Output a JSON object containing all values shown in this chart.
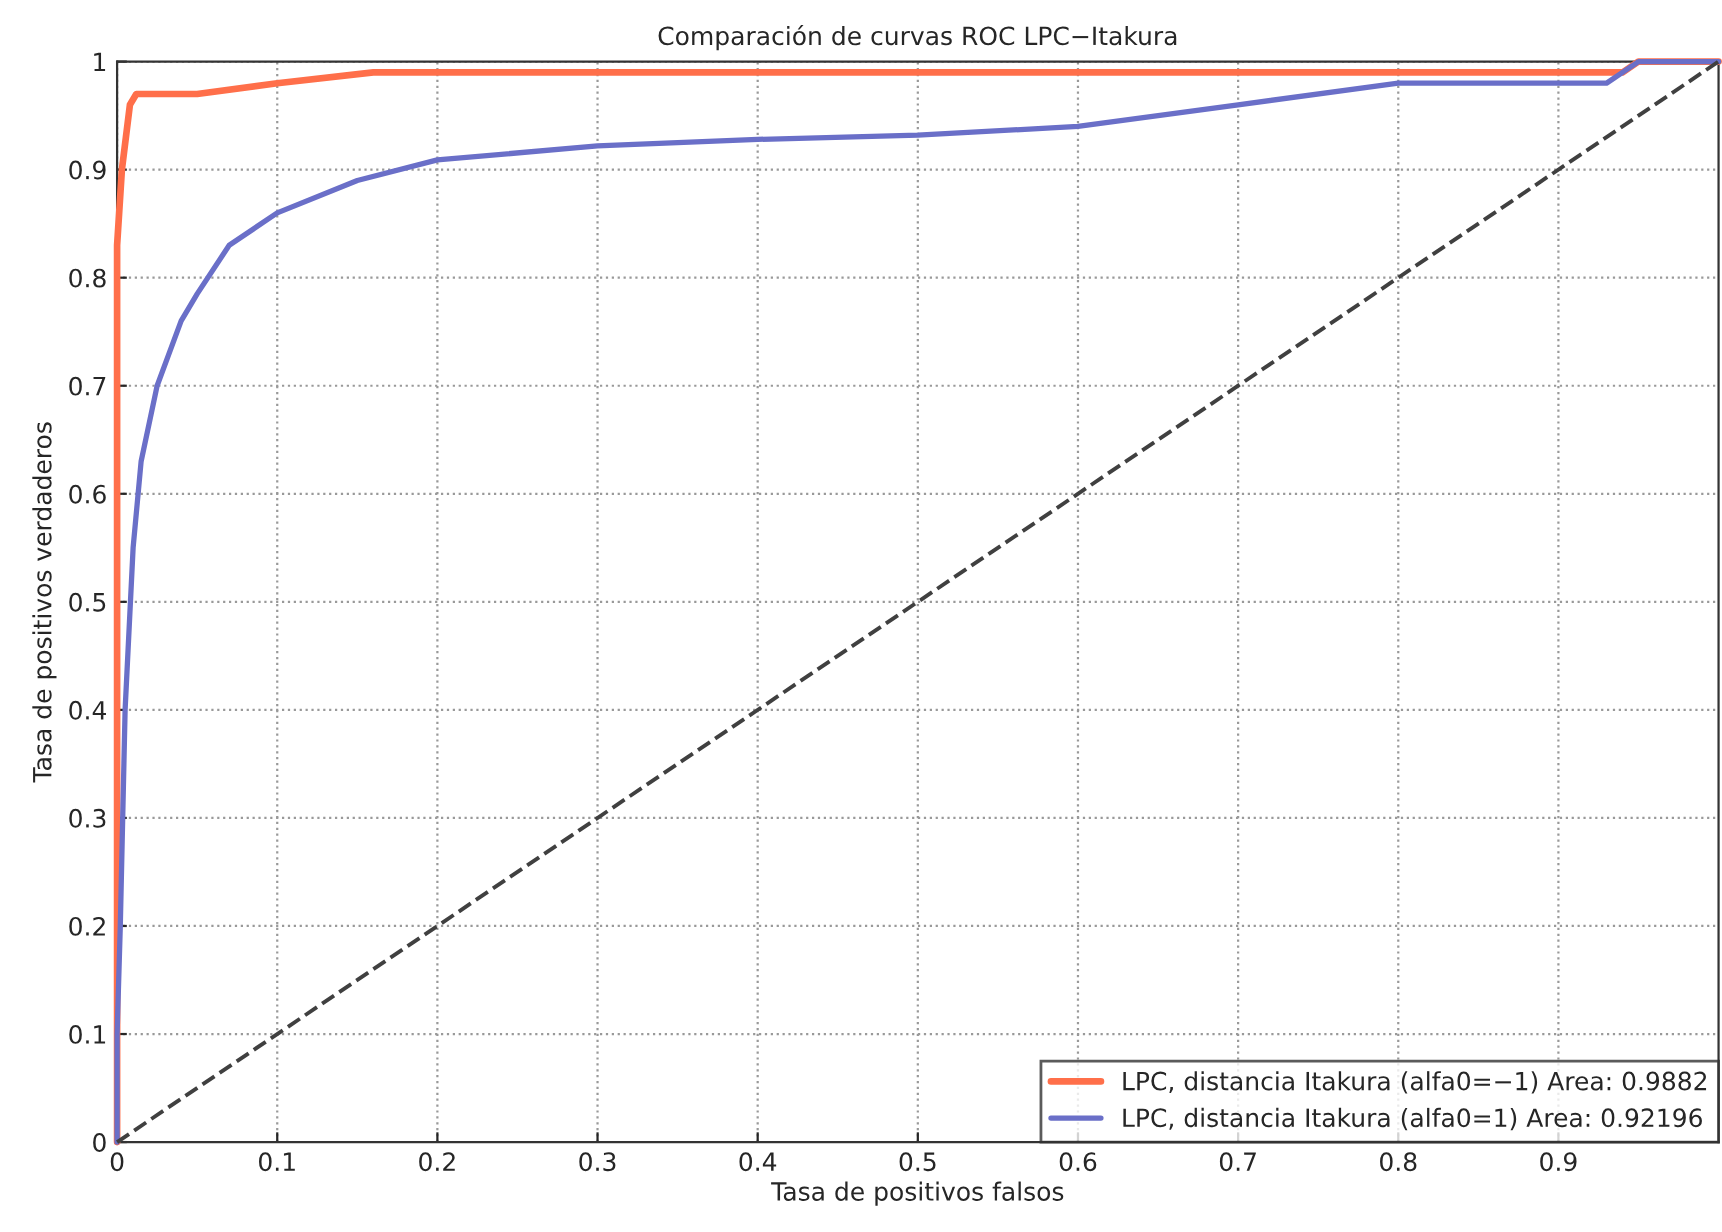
{
  "chart_data": {
    "type": "line",
    "title": "Comparación de curvas ROC LPC−Itakura",
    "xlabel": "Tasa de positivos falsos",
    "ylabel": "Tasa de positivos verdaderos",
    "xlim": [
      0,
      1
    ],
    "ylim": [
      0,
      1
    ],
    "xticks": [
      0,
      0.1,
      0.2,
      0.3,
      0.4,
      0.5,
      0.6,
      0.7,
      0.8,
      0.9
    ],
    "yticks": [
      0,
      0.1,
      0.2,
      0.3,
      0.4,
      0.5,
      0.6,
      0.7,
      0.8,
      0.9,
      1
    ],
    "grid": true,
    "legend": "bottom right",
    "marker": "none",
    "series": [
      {
        "name": "LPC, distancia Itakura (alfa0=−1) Area: 0.9882",
        "color": "#ff6f4a",
        "line_style": "solid",
        "x": [
          0,
          0,
          0.003,
          0.008,
          0.012,
          0.05,
          0.1,
          0.16,
          0.94,
          0.95,
          1
        ],
        "values": [
          0,
          0.83,
          0.9,
          0.96,
          0.97,
          0.97,
          0.98,
          0.99,
          0.99,
          1,
          1
        ]
      },
      {
        "name": "LPC, distancia Itakura (alfa0=1) Area: 0.92196",
        "color": "#6a6fc8",
        "line_style": "solid",
        "x": [
          0,
          0,
          0.002,
          0.005,
          0.01,
          0.015,
          0.025,
          0.04,
          0.05,
          0.07,
          0.1,
          0.15,
          0.2,
          0.3,
          0.4,
          0.5,
          0.6,
          0.7,
          0.8,
          0.93,
          0.95,
          1
        ],
        "values": [
          0,
          0.1,
          0.2,
          0.4,
          0.55,
          0.63,
          0.7,
          0.76,
          0.785,
          0.83,
          0.86,
          0.89,
          0.909,
          0.922,
          0.928,
          0.932,
          0.94,
          0.96,
          0.98,
          0.98,
          1,
          1
        ]
      },
      {
        "color": "#404040",
        "line_style": "dashed",
        "x": [
          0,
          1
        ],
        "values": [
          0,
          1
        ]
      }
    ]
  }
}
